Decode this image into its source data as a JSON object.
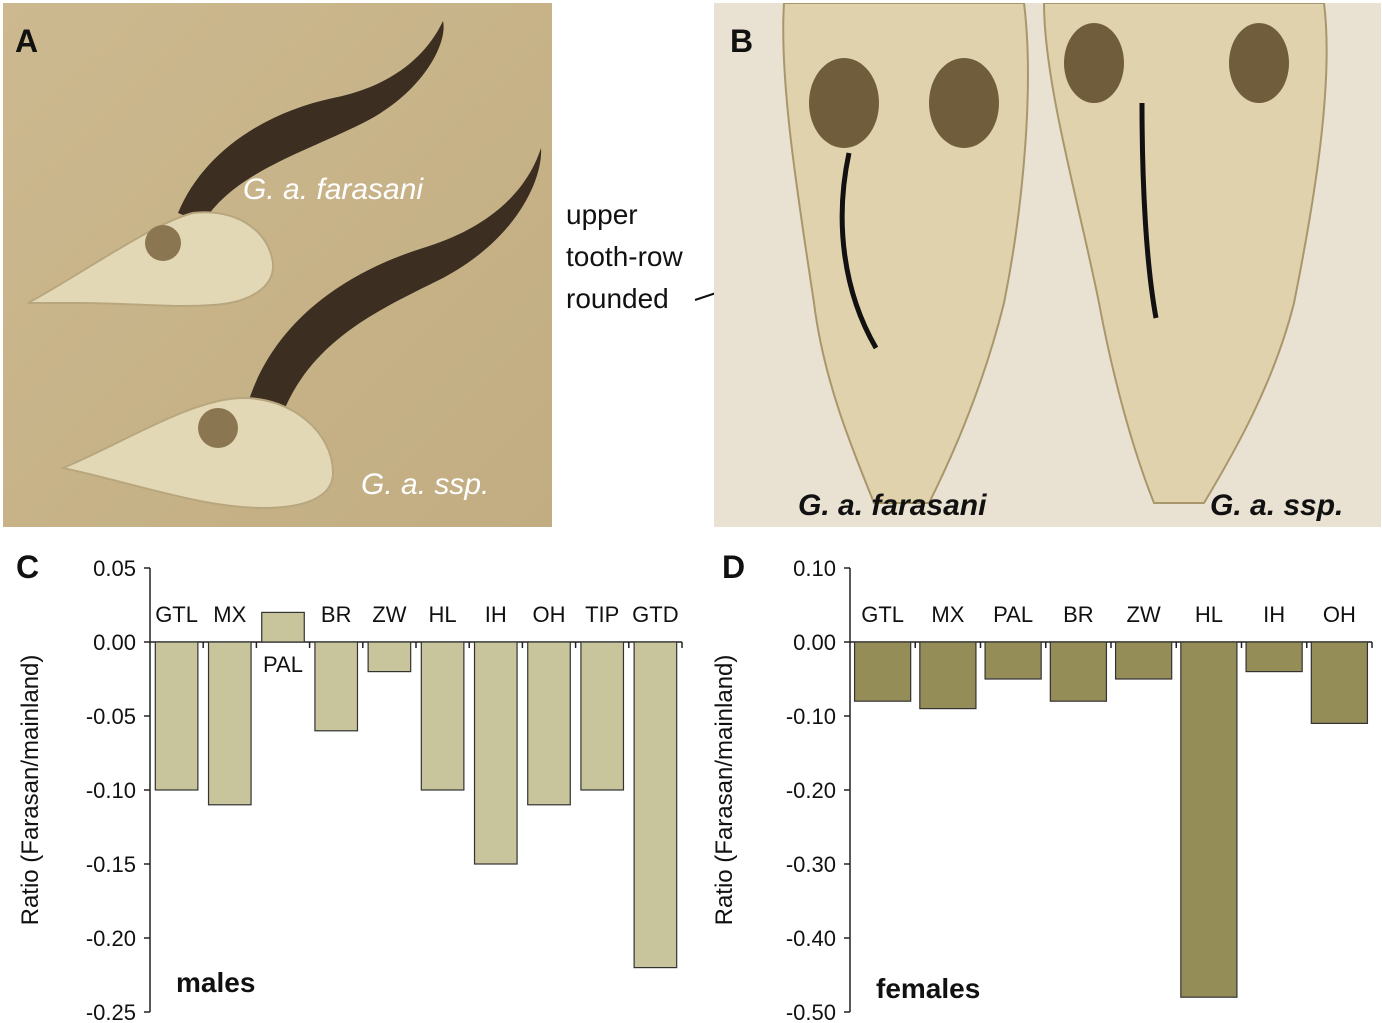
{
  "panels": {
    "a": {
      "letter": "A",
      "label_top": "G. a. farasani",
      "label_bottom": "G. a. ssp."
    },
    "b": {
      "letter": "B",
      "label_left": "G. a. farasani",
      "label_right": "G. a. ssp."
    },
    "annotation": {
      "lines": [
        "upper",
        "tooth-row",
        "rounded"
      ]
    }
  },
  "colors": {
    "males_bar": "#c8c49c",
    "females_bar": "#958d57",
    "photo_background": "#c9b58c",
    "skull": "#e3d8b6",
    "horn": "#3c2f22"
  },
  "chart_data": [
    {
      "type": "bar",
      "panel_letter": "C",
      "categories": [
        "GTL",
        "MX",
        "PAL",
        "BR",
        "ZW",
        "HL",
        "IH",
        "OH",
        "TIP",
        "GTD"
      ],
      "values": [
        -0.1,
        -0.11,
        0.02,
        -0.06,
        -0.02,
        -0.1,
        -0.15,
        -0.11,
        -0.1,
        -0.22
      ],
      "ylabel": "Ratio (Farasan/mainland)",
      "annotation": "males",
      "ylim": [
        -0.25,
        0.05
      ],
      "yticks": [
        0.05,
        0.0,
        -0.05,
        -0.1,
        -0.15,
        -0.2,
        -0.25
      ],
      "ytick_labels": [
        "0.05",
        "0.00",
        "-0.05",
        "-0.10",
        "-0.15",
        "-0.20",
        "-0.25"
      ]
    },
    {
      "type": "bar",
      "panel_letter": "D",
      "categories": [
        "GTL",
        "MX",
        "PAL",
        "BR",
        "ZW",
        "HL",
        "IH",
        "OH"
      ],
      "values": [
        -0.08,
        -0.09,
        -0.05,
        -0.08,
        -0.05,
        -0.48,
        -0.04,
        -0.11
      ],
      "ylabel": "Ratio (Farasan/mainland)",
      "annotation": "females",
      "ylim": [
        -0.5,
        0.1
      ],
      "yticks": [
        0.1,
        0.0,
        -0.1,
        -0.2,
        -0.3,
        -0.4,
        -0.5
      ],
      "ytick_labels": [
        "0.10",
        "0.00",
        "-0.10",
        "-0.20",
        "-0.30",
        "-0.40",
        "-0.50"
      ]
    }
  ]
}
